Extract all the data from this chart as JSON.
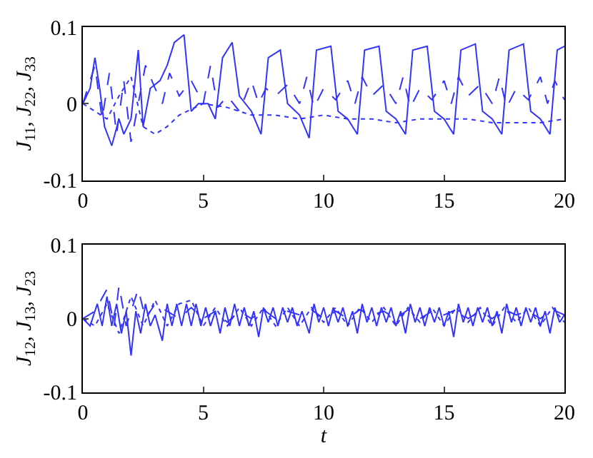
{
  "chart_data": [
    {
      "type": "line",
      "ylabel": "J$_{11}$, J$_{22}$, J$_{33}$",
      "xlim": [
        0,
        20
      ],
      "xticks": [
        0,
        5,
        10,
        15,
        20
      ],
      "ylim": [
        -0.1,
        0.1
      ],
      "yticks": [
        -0.1,
        0,
        0.1
      ],
      "series": [
        {
          "color": "#3333ff",
          "line_style": "solid",
          "x": [
            0,
            0.3,
            0.5,
            0.7,
            0.9,
            1.2,
            1.5,
            1.7,
            2.0,
            2.3,
            2.5,
            2.8,
            3.2,
            3.5,
            3.8,
            4.2,
            4.5,
            4.8,
            5.2,
            5.5,
            5.8,
            6.2,
            6.5,
            7.0,
            7.4,
            7.7,
            8.2,
            8.5,
            9.0,
            9.4,
            9.7,
            10.3,
            10.6,
            11.0,
            11.4,
            11.7,
            12.3,
            12.6,
            13.0,
            13.4,
            13.7,
            14.3,
            14.6,
            15.0,
            15.4,
            15.7,
            16.3,
            16.6,
            17.0,
            17.4,
            17.7,
            18.3,
            18.6,
            19.0,
            19.4,
            19.7,
            20.0
          ],
          "values": [
            0,
            0.02,
            0.06,
            0.02,
            -0.03,
            -0.055,
            -0.02,
            -0.04,
            -0.02,
            0.07,
            -0.03,
            0.02,
            0.03,
            0.05,
            0.08,
            0.09,
            -0.01,
            0.0,
            0.0,
            -0.02,
            0.06,
            0.08,
            0.01,
            -0.01,
            -0.04,
            0.06,
            0.07,
            0.0,
            -0.015,
            -0.045,
            0.07,
            0.075,
            -0.01,
            -0.02,
            -0.04,
            0.07,
            0.075,
            -0.01,
            -0.02,
            -0.04,
            0.07,
            0.075,
            -0.01,
            -0.02,
            -0.04,
            0.07,
            0.078,
            -0.01,
            -0.02,
            -0.04,
            0.07,
            0.078,
            -0.01,
            -0.02,
            -0.04,
            0.07,
            0.075
          ]
        },
        {
          "color": "#3333ff",
          "line_style": "dashed",
          "x": [
            0,
            0.5,
            0.8,
            1.1,
            1.4,
            1.7,
            2.0,
            2.3,
            2.6,
            3.0,
            3.3,
            3.6,
            4.0,
            4.5,
            5.0,
            5.3,
            5.6,
            6.0,
            6.5,
            7.0,
            7.3,
            7.6,
            8.0,
            8.5,
            9.0,
            9.3,
            9.6,
            10.0,
            10.5,
            11.0,
            11.3,
            11.6,
            12.0,
            12.5,
            13.0,
            13.3,
            13.6,
            14.0,
            14.5,
            15.0,
            15.3,
            15.6,
            16.0,
            16.5,
            17.0,
            17.3,
            17.6,
            18.0,
            18.5,
            19.0,
            19.3,
            19.6,
            20.0
          ],
          "values": [
            0,
            0.05,
            -0.02,
            0.04,
            -0.04,
            0.03,
            -0.05,
            0.0,
            0.05,
            0.02,
            0.0,
            0.04,
            0.01,
            0.03,
            0.0,
            0.05,
            -0.005,
            0.01,
            -0.01,
            0.03,
            0.0,
            0.02,
            0.01,
            0.025,
            0.0,
            0.035,
            -0.005,
            0.02,
            0.005,
            0.03,
            0.0,
            0.035,
            0.01,
            0.025,
            0.0,
            0.035,
            -0.005,
            0.02,
            0.005,
            0.03,
            0.0,
            0.035,
            0.01,
            0.025,
            0.0,
            0.035,
            -0.005,
            0.02,
            0.005,
            0.035,
            0.0,
            0.03,
            0.005
          ]
        },
        {
          "color": "#3333ff",
          "line_style": "dotted",
          "x": [
            0,
            0.5,
            1.0,
            1.5,
            2.0,
            2.5,
            3.0,
            3.5,
            4.0,
            5.0,
            6.0,
            7.0,
            8.0,
            9.0,
            10.0,
            11.0,
            12.0,
            13.0,
            14.0,
            15.0,
            16.0,
            17.0,
            18.0,
            19.0,
            20.0
          ],
          "values": [
            0,
            -0.01,
            -0.02,
            0.01,
            0.035,
            -0.03,
            -0.04,
            -0.03,
            -0.015,
            0.0,
            -0.005,
            -0.015,
            -0.015,
            -0.02,
            -0.015,
            -0.02,
            -0.02,
            -0.025,
            -0.02,
            -0.02,
            -0.02,
            -0.025,
            -0.025,
            -0.025,
            -0.02
          ]
        }
      ]
    },
    {
      "type": "line",
      "xlabel": "t",
      "ylabel": "J$_{12}$, J$_{13}$, J$_{23}$",
      "xlim": [
        0,
        20
      ],
      "xticks": [
        0,
        5,
        10,
        15,
        20
      ],
      "ylim": [
        -0.1,
        0.1
      ],
      "yticks": [
        -0.1,
        0,
        0.1
      ],
      "series": [
        {
          "color": "#3333ff",
          "line_style": "solid",
          "x": [
            0,
            0.3,
            0.6,
            0.8,
            1.0,
            1.2,
            1.4,
            1.6,
            1.8,
            2.0,
            2.2,
            2.4,
            2.6,
            2.8,
            3.0,
            3.3,
            3.5,
            3.7,
            3.9,
            4.1,
            4.3,
            4.5,
            4.7,
            4.9,
            5.1,
            5.3,
            5.5,
            5.7,
            5.9,
            6.1,
            6.3,
            6.5,
            6.7,
            6.9,
            7.1,
            7.3,
            7.5,
            7.7,
            7.9,
            8.1,
            8.3,
            8.5,
            8.7,
            8.9,
            9.1,
            9.4,
            9.6,
            9.8,
            10.0,
            10.2,
            10.4,
            10.6,
            10.8,
            11.0,
            11.2,
            11.4,
            11.6,
            11.8,
            12.0,
            12.2,
            12.4,
            12.6,
            12.8,
            13.0,
            13.2,
            13.4,
            13.6,
            13.8,
            14.0,
            14.2,
            14.4,
            14.6,
            14.8,
            15.0,
            15.2,
            15.4,
            15.6,
            15.8,
            16.0,
            16.2,
            16.4,
            16.6,
            16.8,
            17.0,
            17.2,
            17.4,
            17.6,
            17.8,
            18.0,
            18.2,
            18.4,
            18.6,
            18.8,
            19.0,
            19.2,
            19.4,
            19.6,
            19.8,
            20.0
          ],
          "values": [
            0,
            -0.01,
            0.02,
            -0.01,
            0.03,
            -0.01,
            0.02,
            -0.02,
            0.01,
            -0.05,
            0.01,
            -0.02,
            0.02,
            -0.01,
            0.005,
            -0.03,
            0.02,
            -0.01,
            0.02,
            -0.01,
            0.02,
            -0.01,
            0.02,
            -0.01,
            0.015,
            -0.01,
            0.01,
            -0.02,
            0.015,
            -0.01,
            0.02,
            -0.01,
            0.015,
            -0.01,
            0.01,
            -0.025,
            0.015,
            -0.005,
            0.015,
            -0.01,
            0.015,
            -0.005,
            0.015,
            -0.01,
            0.01,
            -0.02,
            0.02,
            -0.005,
            0.015,
            -0.01,
            0.015,
            -0.005,
            0.015,
            -0.01,
            0.01,
            -0.02,
            0.02,
            -0.005,
            0.015,
            -0.01,
            0.015,
            -0.005,
            0.015,
            -0.01,
            0.01,
            -0.02,
            0.02,
            -0.005,
            0.015,
            -0.01,
            0.015,
            -0.005,
            0.015,
            -0.01,
            0.01,
            -0.025,
            0.02,
            -0.005,
            0.015,
            -0.01,
            0.015,
            -0.005,
            0.015,
            -0.01,
            0.01,
            -0.02,
            0.02,
            -0.005,
            0.015,
            -0.01,
            0.015,
            -0.005,
            0.015,
            -0.01,
            0.01,
            -0.02,
            0.015,
            -0.005,
            0.005
          ]
        },
        {
          "color": "#3333ff",
          "line_style": "dashed",
          "x": [
            0,
            0.5,
            1.0,
            1.3,
            1.5,
            1.8,
            2.3,
            2.6,
            3.0,
            3.5,
            4.0,
            4.5,
            5.0,
            5.5,
            6.0,
            6.5,
            7.0,
            7.5,
            8.0,
            8.5,
            9.0,
            9.5,
            10.0,
            10.5,
            11.0,
            11.5,
            12.0,
            12.5,
            13.0,
            13.5,
            14.0,
            14.5,
            15.0,
            15.5,
            16.0,
            16.5,
            17.0,
            17.5,
            18.0,
            18.5,
            19.0,
            19.5,
            20.0
          ],
          "values": [
            0,
            0.01,
            0.04,
            -0.01,
            0.045,
            -0.01,
            0.04,
            0.0,
            0.02,
            0.01,
            0.0,
            0.015,
            0.0,
            0.01,
            -0.005,
            0.01,
            0.0,
            0.012,
            0.0,
            0.01,
            0.005,
            0.012,
            0.0,
            0.01,
            0.0,
            0.012,
            0.005,
            0.01,
            0.0,
            0.012,
            0.0,
            0.01,
            0.005,
            0.012,
            0.0,
            0.01,
            0.0,
            0.012,
            0.005,
            0.01,
            0.0,
            0.012,
            0.005
          ]
        },
        {
          "color": "#3333ff",
          "line_style": "dotted",
          "x": [
            0,
            0.5,
            1.0,
            1.5,
            2.0,
            2.5,
            3.0,
            3.5,
            4.0,
            4.5,
            5.0,
            5.5,
            6.0,
            6.5,
            7.0,
            7.5,
            8.0,
            8.5,
            9.0,
            9.5,
            10.0,
            10.5,
            11.0,
            11.5,
            12.0,
            12.5,
            13.0,
            13.5,
            14.0,
            14.5,
            15.0,
            15.5,
            16.0,
            16.5,
            17.0,
            17.5,
            18.0,
            18.5,
            19.0,
            19.5,
            20.0
          ],
          "values": [
            0,
            -0.01,
            0.02,
            -0.02,
            0.03,
            -0.01,
            0.025,
            -0.01,
            0.02,
            0.025,
            -0.01,
            0.015,
            -0.01,
            0.015,
            -0.01,
            0.015,
            -0.01,
            0.015,
            -0.01,
            0.015,
            -0.005,
            0.015,
            -0.01,
            0.015,
            -0.005,
            0.015,
            -0.01,
            0.015,
            -0.005,
            0.015,
            -0.01,
            0.015,
            -0.005,
            0.015,
            -0.01,
            0.015,
            -0.005,
            0.015,
            -0.01,
            0.015,
            -0.005
          ]
        }
      ]
    }
  ]
}
